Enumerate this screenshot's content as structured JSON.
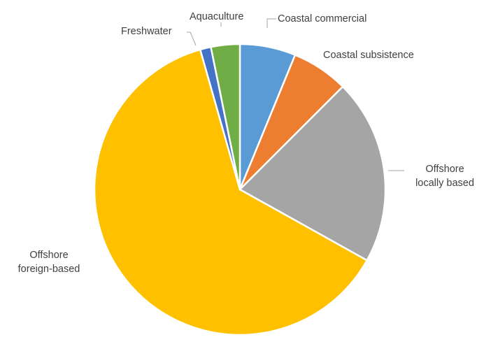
{
  "chart_data": {
    "type": "pie",
    "title": "",
    "legend": "none",
    "start_angle_deg": 0,
    "direction": "clockwise",
    "slices": [
      {
        "label": [
          "Coastal commercial"
        ],
        "value": 6.2,
        "color": "#5b9bd5"
      },
      {
        "label": [
          "Coastal subsistence"
        ],
        "value": 6.3,
        "color": "#ed7d31"
      },
      {
        "label": [
          "Offshore",
          "locally based"
        ],
        "value": 20.6,
        "color": "#a5a5a5"
      },
      {
        "label": [
          "Offshore",
          "foreign-based"
        ],
        "value": 62.5,
        "color": "#ffc000"
      },
      {
        "label": [
          "Freshwater"
        ],
        "value": 1.2,
        "color": "#4472c4"
      },
      {
        "label": [
          "Aquaculture"
        ],
        "value": 3.2,
        "color": "#70ad47"
      }
    ]
  }
}
